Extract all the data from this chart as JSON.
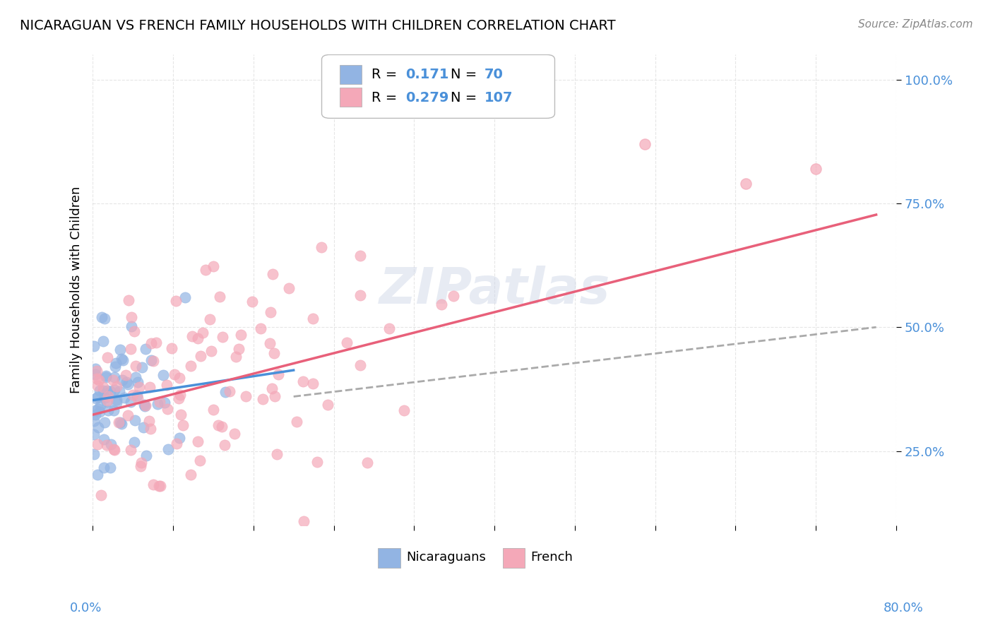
{
  "title": "NICARAGUAN VS FRENCH FAMILY HOUSEHOLDS WITH CHILDREN CORRELATION CHART",
  "source": "Source: ZipAtlas.com",
  "ylabel": "Family Households with Children",
  "blue_R": "0.171",
  "blue_N": "70",
  "pink_R": "0.279",
  "pink_N": "107",
  "blue_color": "#92b4e3",
  "pink_color": "#f4a8b8",
  "trend_blue": "#4a90d9",
  "trend_pink": "#e8607a",
  "trend_dashed": "#aaaaaa",
  "xlim": [
    0.0,
    80.0
  ],
  "ylim": [
    0.1,
    1.05
  ],
  "background_color": "#ffffff",
  "grid_color": "#e0e0e0",
  "ytick_vals": [
    0.25,
    0.5,
    0.75,
    1.0
  ],
  "ytick_labels": [
    "25.0%",
    "50.0%",
    "75.0%",
    "100.0%"
  ]
}
